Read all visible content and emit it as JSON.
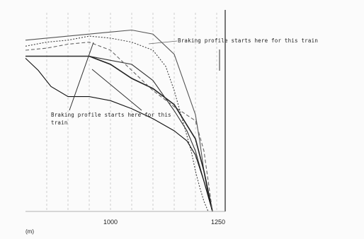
{
  "chart_data": {
    "type": "line",
    "title": "",
    "xlabel": "",
    "ylabel": "",
    "x_unit_label": "(m)",
    "xlim": [
      800,
      1270
    ],
    "x_ticks": [
      1000,
      1250
    ],
    "ylim": [
      0,
      100
    ],
    "grid": "vertical dashed",
    "legend": "none",
    "series": [
      {
        "color": "#555555",
        "dash": "",
        "x": [
          800,
          850,
          900,
          950,
          1000,
          1050,
          1100,
          1150,
          1200,
          1210,
          1220,
          1230,
          1240
        ],
        "y": [
          85,
          86,
          87,
          88,
          89,
          90,
          88,
          78,
          48,
          35,
          20,
          8,
          0
        ]
      },
      {
        "color": "#444444",
        "dash": "2,2",
        "x": [
          800,
          850,
          900,
          950,
          1000,
          1050,
          1100,
          1130,
          1150,
          1170,
          1190,
          1200,
          1210,
          1220,
          1230
        ],
        "y": [
          82,
          84,
          85,
          87,
          86,
          84,
          80,
          72,
          60,
          45,
          30,
          20,
          12,
          5,
          0
        ]
      },
      {
        "color": "#222222",
        "dash": "",
        "x": [
          800,
          850,
          900,
          950,
          1000,
          1050,
          1100,
          1150,
          1200,
          1220,
          1230,
          1240
        ],
        "y": [
          77,
          77,
          77,
          77,
          73,
          66,
          61,
          53,
          36,
          20,
          10,
          0
        ]
      },
      {
        "color": "#333333",
        "dash": "",
        "x": [
          800,
          850,
          900,
          950,
          1000,
          1050,
          1100,
          1150,
          1180,
          1200,
          1220,
          1240
        ],
        "y": [
          77,
          77,
          77,
          77,
          75,
          73,
          65,
          50,
          40,
          30,
          15,
          0
        ]
      },
      {
        "color": "#111111",
        "dash": "",
        "x": [
          800,
          830,
          860,
          900,
          950,
          1000,
          1050,
          1100,
          1150,
          1180,
          1200,
          1220,
          1240
        ],
        "y": [
          76,
          70,
          62,
          57,
          57,
          55,
          51,
          46,
          40,
          35,
          28,
          15,
          0
        ]
      },
      {
        "color": "#666666",
        "dash": "5,3",
        "x": [
          800,
          850,
          900,
          950,
          1000,
          1050,
          1100,
          1150,
          1200,
          1220,
          1240
        ],
        "y": [
          80,
          81,
          83,
          84,
          80,
          70,
          60,
          52,
          45,
          30,
          0
        ]
      }
    ],
    "annotations": [
      {
        "text": "Braking profile starts here for this train",
        "lines": [
          "Braking profile starts here for this train"
        ]
      },
      {
        "text": "Braking profile starts here for this train",
        "lines": [
          "Braking profile starts here for this",
          "train"
        ]
      }
    ]
  }
}
